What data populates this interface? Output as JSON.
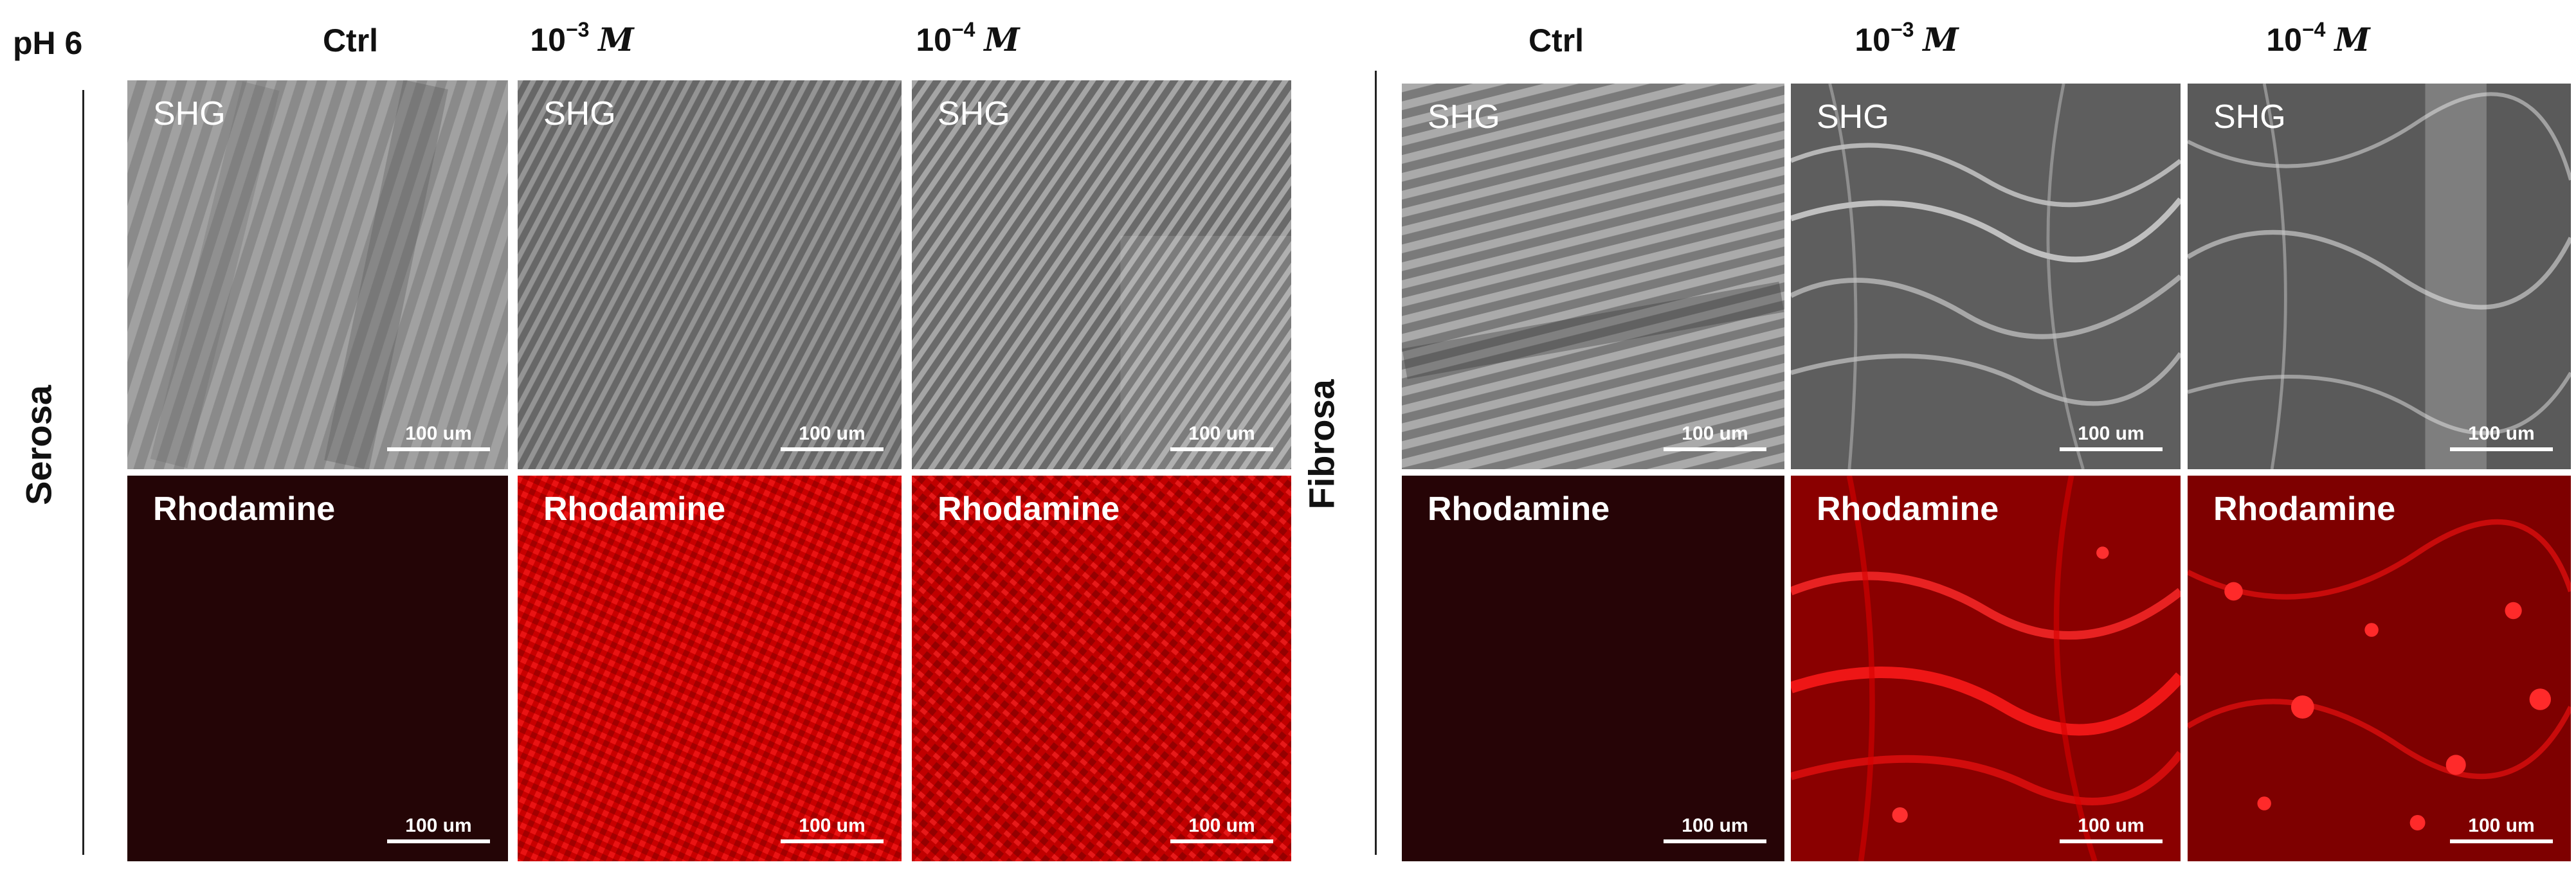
{
  "ph_label": "pH 6",
  "left_group": {
    "row_label": "Serosa",
    "columns": [
      "Ctrl",
      "10",
      "10"
    ],
    "exponents": [
      "",
      "−3",
      "−4"
    ],
    "units": [
      "",
      "M",
      "M"
    ]
  },
  "right_group": {
    "row_label": "Fibrosa",
    "columns": [
      "Ctrl",
      "10",
      "10"
    ],
    "exponents": [
      "",
      "−3",
      "−4"
    ],
    "units": [
      "",
      "M",
      "M"
    ]
  },
  "panel_labels": {
    "shg": "SHG",
    "rhodamine": "Rhodamine"
  },
  "scale_bar_text": "100 um",
  "colors": {
    "rhodamine_red": "#e00000",
    "ctrl_dark": "#240506",
    "shg_gray": "#8a8a8a"
  }
}
